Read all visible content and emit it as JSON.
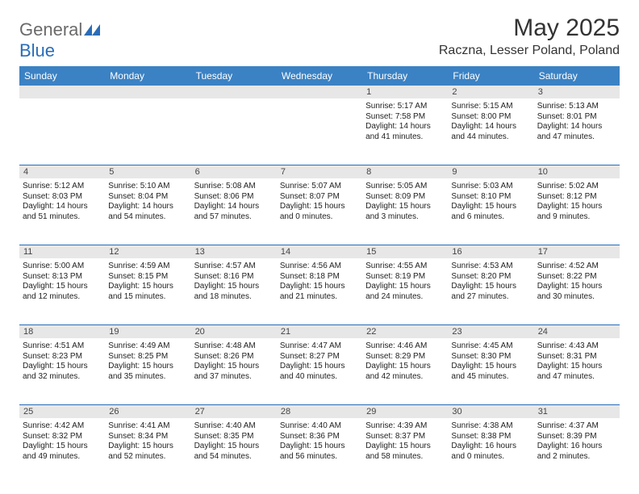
{
  "logo": {
    "text1": "General",
    "text2": "Blue"
  },
  "title": "May 2025",
  "location": "Raczna, Lesser Poland, Poland",
  "colors": {
    "header_bg": "#3b82c4",
    "border": "#2a6db8",
    "daynum_bg": "#e7e7e7",
    "text": "#222222"
  },
  "daysOfWeek": [
    "Sunday",
    "Monday",
    "Tuesday",
    "Wednesday",
    "Thursday",
    "Friday",
    "Saturday"
  ],
  "weeks": [
    [
      {
        "n": "",
        "sr": "",
        "ss": "",
        "dl1": "",
        "dl2": ""
      },
      {
        "n": "",
        "sr": "",
        "ss": "",
        "dl1": "",
        "dl2": ""
      },
      {
        "n": "",
        "sr": "",
        "ss": "",
        "dl1": "",
        "dl2": ""
      },
      {
        "n": "",
        "sr": "",
        "ss": "",
        "dl1": "",
        "dl2": ""
      },
      {
        "n": "1",
        "sr": "Sunrise: 5:17 AM",
        "ss": "Sunset: 7:58 PM",
        "dl1": "Daylight: 14 hours",
        "dl2": "and 41 minutes."
      },
      {
        "n": "2",
        "sr": "Sunrise: 5:15 AM",
        "ss": "Sunset: 8:00 PM",
        "dl1": "Daylight: 14 hours",
        "dl2": "and 44 minutes."
      },
      {
        "n": "3",
        "sr": "Sunrise: 5:13 AM",
        "ss": "Sunset: 8:01 PM",
        "dl1": "Daylight: 14 hours",
        "dl2": "and 47 minutes."
      }
    ],
    [
      {
        "n": "4",
        "sr": "Sunrise: 5:12 AM",
        "ss": "Sunset: 8:03 PM",
        "dl1": "Daylight: 14 hours",
        "dl2": "and 51 minutes."
      },
      {
        "n": "5",
        "sr": "Sunrise: 5:10 AM",
        "ss": "Sunset: 8:04 PM",
        "dl1": "Daylight: 14 hours",
        "dl2": "and 54 minutes."
      },
      {
        "n": "6",
        "sr": "Sunrise: 5:08 AM",
        "ss": "Sunset: 8:06 PM",
        "dl1": "Daylight: 14 hours",
        "dl2": "and 57 minutes."
      },
      {
        "n": "7",
        "sr": "Sunrise: 5:07 AM",
        "ss": "Sunset: 8:07 PM",
        "dl1": "Daylight: 15 hours",
        "dl2": "and 0 minutes."
      },
      {
        "n": "8",
        "sr": "Sunrise: 5:05 AM",
        "ss": "Sunset: 8:09 PM",
        "dl1": "Daylight: 15 hours",
        "dl2": "and 3 minutes."
      },
      {
        "n": "9",
        "sr": "Sunrise: 5:03 AM",
        "ss": "Sunset: 8:10 PM",
        "dl1": "Daylight: 15 hours",
        "dl2": "and 6 minutes."
      },
      {
        "n": "10",
        "sr": "Sunrise: 5:02 AM",
        "ss": "Sunset: 8:12 PM",
        "dl1": "Daylight: 15 hours",
        "dl2": "and 9 minutes."
      }
    ],
    [
      {
        "n": "11",
        "sr": "Sunrise: 5:00 AM",
        "ss": "Sunset: 8:13 PM",
        "dl1": "Daylight: 15 hours",
        "dl2": "and 12 minutes."
      },
      {
        "n": "12",
        "sr": "Sunrise: 4:59 AM",
        "ss": "Sunset: 8:15 PM",
        "dl1": "Daylight: 15 hours",
        "dl2": "and 15 minutes."
      },
      {
        "n": "13",
        "sr": "Sunrise: 4:57 AM",
        "ss": "Sunset: 8:16 PM",
        "dl1": "Daylight: 15 hours",
        "dl2": "and 18 minutes."
      },
      {
        "n": "14",
        "sr": "Sunrise: 4:56 AM",
        "ss": "Sunset: 8:18 PM",
        "dl1": "Daylight: 15 hours",
        "dl2": "and 21 minutes."
      },
      {
        "n": "15",
        "sr": "Sunrise: 4:55 AM",
        "ss": "Sunset: 8:19 PM",
        "dl1": "Daylight: 15 hours",
        "dl2": "and 24 minutes."
      },
      {
        "n": "16",
        "sr": "Sunrise: 4:53 AM",
        "ss": "Sunset: 8:20 PM",
        "dl1": "Daylight: 15 hours",
        "dl2": "and 27 minutes."
      },
      {
        "n": "17",
        "sr": "Sunrise: 4:52 AM",
        "ss": "Sunset: 8:22 PM",
        "dl1": "Daylight: 15 hours",
        "dl2": "and 30 minutes."
      }
    ],
    [
      {
        "n": "18",
        "sr": "Sunrise: 4:51 AM",
        "ss": "Sunset: 8:23 PM",
        "dl1": "Daylight: 15 hours",
        "dl2": "and 32 minutes."
      },
      {
        "n": "19",
        "sr": "Sunrise: 4:49 AM",
        "ss": "Sunset: 8:25 PM",
        "dl1": "Daylight: 15 hours",
        "dl2": "and 35 minutes."
      },
      {
        "n": "20",
        "sr": "Sunrise: 4:48 AM",
        "ss": "Sunset: 8:26 PM",
        "dl1": "Daylight: 15 hours",
        "dl2": "and 37 minutes."
      },
      {
        "n": "21",
        "sr": "Sunrise: 4:47 AM",
        "ss": "Sunset: 8:27 PM",
        "dl1": "Daylight: 15 hours",
        "dl2": "and 40 minutes."
      },
      {
        "n": "22",
        "sr": "Sunrise: 4:46 AM",
        "ss": "Sunset: 8:29 PM",
        "dl1": "Daylight: 15 hours",
        "dl2": "and 42 minutes."
      },
      {
        "n": "23",
        "sr": "Sunrise: 4:45 AM",
        "ss": "Sunset: 8:30 PM",
        "dl1": "Daylight: 15 hours",
        "dl2": "and 45 minutes."
      },
      {
        "n": "24",
        "sr": "Sunrise: 4:43 AM",
        "ss": "Sunset: 8:31 PM",
        "dl1": "Daylight: 15 hours",
        "dl2": "and 47 minutes."
      }
    ],
    [
      {
        "n": "25",
        "sr": "Sunrise: 4:42 AM",
        "ss": "Sunset: 8:32 PM",
        "dl1": "Daylight: 15 hours",
        "dl2": "and 49 minutes."
      },
      {
        "n": "26",
        "sr": "Sunrise: 4:41 AM",
        "ss": "Sunset: 8:34 PM",
        "dl1": "Daylight: 15 hours",
        "dl2": "and 52 minutes."
      },
      {
        "n": "27",
        "sr": "Sunrise: 4:40 AM",
        "ss": "Sunset: 8:35 PM",
        "dl1": "Daylight: 15 hours",
        "dl2": "and 54 minutes."
      },
      {
        "n": "28",
        "sr": "Sunrise: 4:40 AM",
        "ss": "Sunset: 8:36 PM",
        "dl1": "Daylight: 15 hours",
        "dl2": "and 56 minutes."
      },
      {
        "n": "29",
        "sr": "Sunrise: 4:39 AM",
        "ss": "Sunset: 8:37 PM",
        "dl1": "Daylight: 15 hours",
        "dl2": "and 58 minutes."
      },
      {
        "n": "30",
        "sr": "Sunrise: 4:38 AM",
        "ss": "Sunset: 8:38 PM",
        "dl1": "Daylight: 16 hours",
        "dl2": "and 0 minutes."
      },
      {
        "n": "31",
        "sr": "Sunrise: 4:37 AM",
        "ss": "Sunset: 8:39 PM",
        "dl1": "Daylight: 16 hours",
        "dl2": "and 2 minutes."
      }
    ]
  ]
}
